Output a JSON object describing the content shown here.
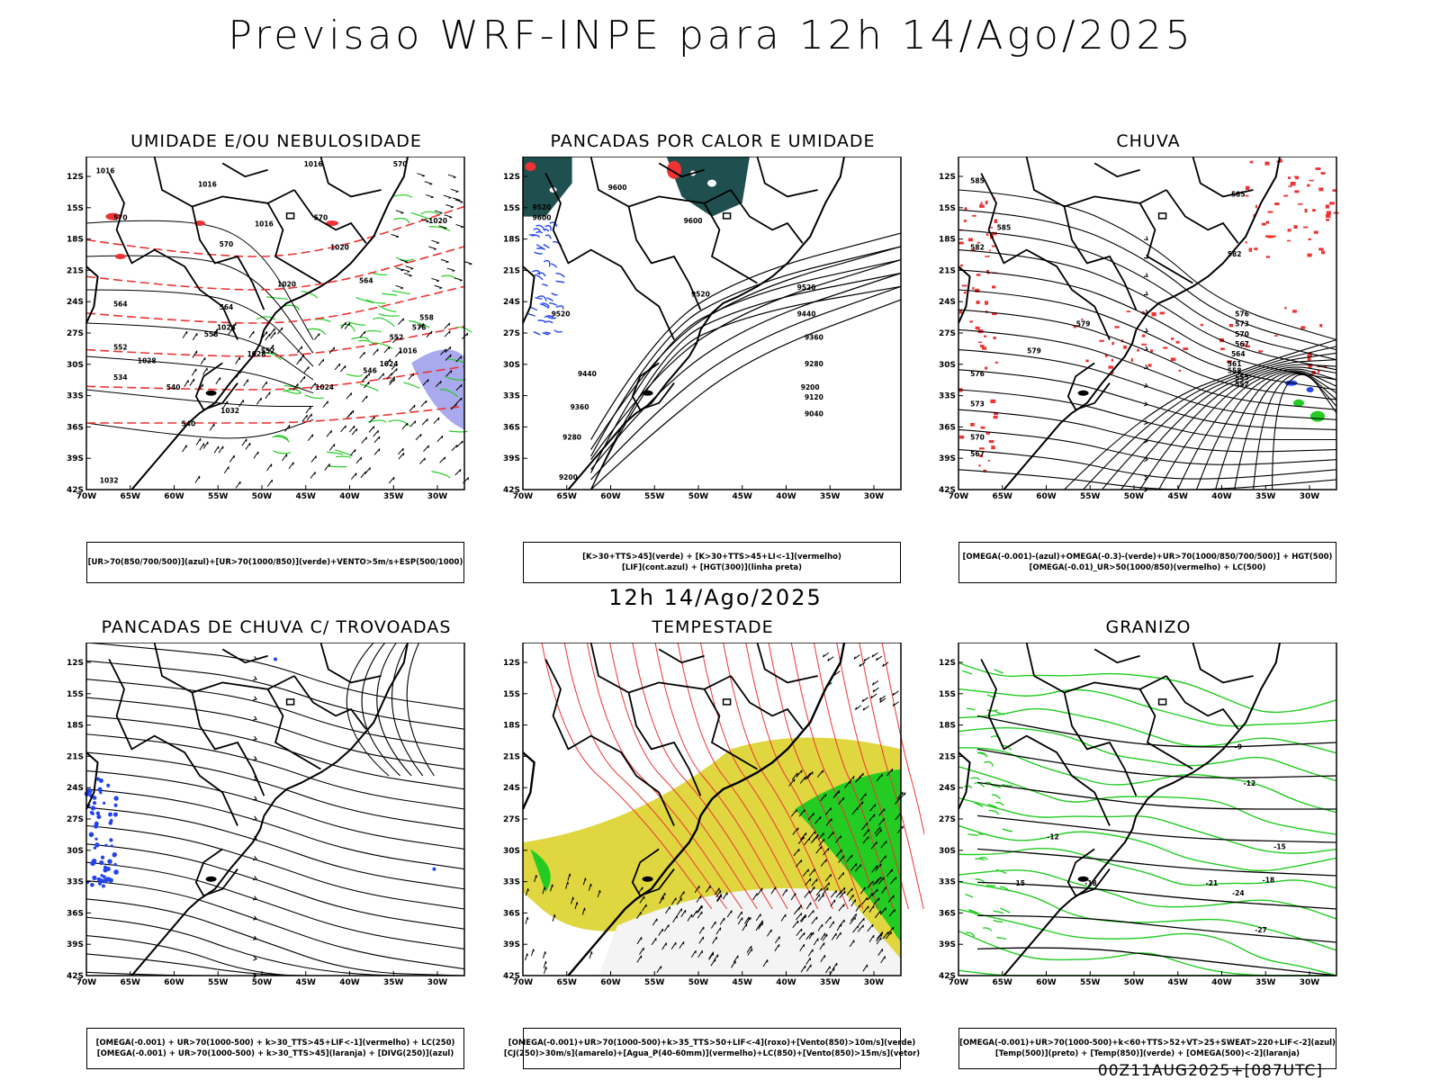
{
  "header": {
    "title": "Previsao WRF-INPE  para 12h 14/Ago/2025",
    "mid_title": "12h 14/Ago/2025",
    "footer": "00Z11AUG2025+[087UTC]"
  },
  "axes": {
    "lat_labels": [
      "12S",
      "15S",
      "18S",
      "21S",
      "24S",
      "27S",
      "30S",
      "33S",
      "36S",
      "39S",
      "42S"
    ],
    "lon_labels": [
      "70W",
      "65W",
      "60W",
      "55W",
      "50W",
      "45W",
      "40W",
      "35W",
      "30W"
    ]
  },
  "colors": {
    "red": "#ee3333",
    "green": "#22cc22",
    "blue": "#2244ee",
    "darkteal": "#1f4f4f",
    "yellow": "#e0d640",
    "lavender": "#a9a9ee"
  },
  "panels": [
    {
      "title": "UMIDADE E/OU NEBULOSIDADE",
      "legend": [
        "[UR>70(850/700/500)](azul)+[UR>70(1000/850)](verde)+VENTO>5m/s+ESP(500/1000)"
      ],
      "contour_labels": [
        "1016",
        "1016",
        "1016",
        "1016",
        "1020",
        "1020",
        "1020",
        "1024",
        "1024",
        "1028",
        "1028",
        "1032",
        "1032",
        "1024",
        "1016",
        "570",
        "570",
        "570",
        "570",
        "564",
        "564",
        "564",
        "558",
        "558",
        "552",
        "552",
        "552",
        "546",
        "540",
        "540",
        "534",
        "576"
      ]
    },
    {
      "title": "PANCADAS POR CALOR E UMIDADE",
      "legend": [
        "[K>30+TTS>45](verde) + [K>30+TTS>45+LI<-1](vermelho)",
        "[LIF](cont.azul) + [HGT(300)](linha preta)"
      ],
      "contour_labels": [
        "9600",
        "9600",
        "9600",
        "9520",
        "9520",
        "9520",
        "9520",
        "9440",
        "9440",
        "9360",
        "9360",
        "9280",
        "9280",
        "9200",
        "9200",
        "9120",
        "9040"
      ]
    },
    {
      "title": "CHUVA",
      "legend": [
        "[OMEGA(-0.001)-(azul)+OMEGA(-0.3)-(verde)+UR>70(1000/850/700/500)] + HGT(500)",
        "[OMEGA(-0.01)_UR>50(1000/850)(vermelho) + LC(500)"
      ],
      "contour_labels": [
        "585",
        "585",
        "585",
        "582",
        "582",
        "579",
        "579",
        "576",
        "576",
        "573",
        "573",
        "570",
        "570",
        "567",
        "567",
        "564",
        "561",
        "558",
        "555",
        "552"
      ]
    },
    {
      "title": "PANCADAS DE CHUVA C/ TROVOADAS",
      "legend": [
        "[OMEGA(-0.001) + UR>70(1000-500) + k>30_TTS>45+LIF<-1](vermelho) + LC(250)",
        "[OMEGA(-0.001) + UR>70(1000-500) + k>30_TTS>45](laranja) + [DIVG(250)](azul)"
      ],
      "contour_labels": []
    },
    {
      "title": "TEMPESTADE",
      "legend": [
        "[OMEGA(-0.001)+UR>70(1000-500)+k>35_TTS>50+LIF<-4](roxo)+[Vento(850)>10m/s](verde)",
        "[CJ(250)>30m/s](amarelo)+[Agua_P(40-60mm)](vermelho)+LC(850)+[Vento(850)>15m/s](vetor)"
      ],
      "contour_labels": []
    },
    {
      "title": "GRANIZO",
      "legend": [
        "[OMEGA(-0.001)+UR>70(1000-500)+k<60+TTS>52+VT>25+SWEAT>220+LIF<-2](azul)",
        "[Temp(500)](preto) + [Temp(850)](verde) + [OMEGA(500)<-2](laranja)"
      ],
      "contour_labels": [
        "-9",
        "-12",
        "-12",
        "-15",
        "-15",
        "-18",
        "-18",
        "-21",
        "-24",
        "-27"
      ]
    }
  ]
}
